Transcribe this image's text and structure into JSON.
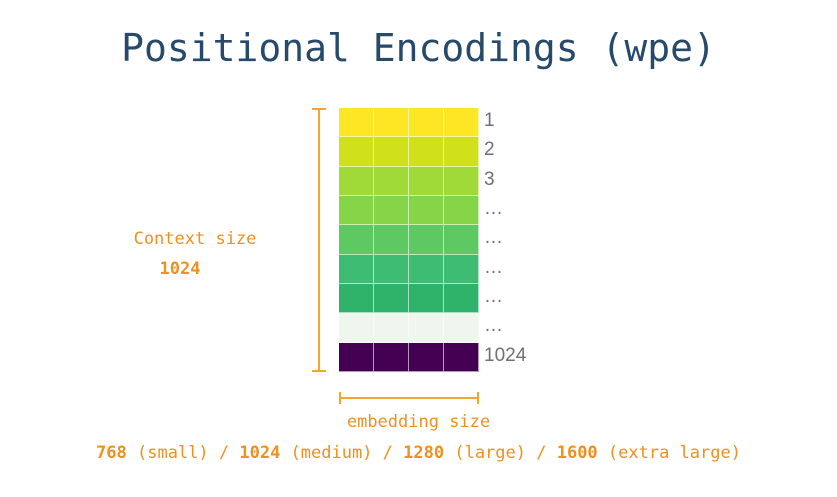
{
  "title": "Positional Encodings (wpe)",
  "matrix": {
    "columns": 4,
    "rows": [
      {
        "label": "1",
        "color": "#fde725"
      },
      {
        "label": "2",
        "color": "#d0e11c"
      },
      {
        "label": "3",
        "color": "#a0da39"
      },
      {
        "label": "…",
        "color": "#86d549"
      },
      {
        "label": "…",
        "color": "#5ec962"
      },
      {
        "label": "…",
        "color": "#3fbc73"
      },
      {
        "label": "…",
        "color": "#2fb26a"
      },
      {
        "label": "…",
        "color": "#eef6ee"
      },
      {
        "label": "1024",
        "color": "#440154"
      }
    ]
  },
  "context": {
    "label": "Context size",
    "value": "1024"
  },
  "embedding": {
    "label": "embedding size",
    "sizes": [
      {
        "value": "768",
        "name": "(small)"
      },
      {
        "value": "1024",
        "name": "(medium)"
      },
      {
        "value": "1280",
        "name": "(large)"
      },
      {
        "value": "1600",
        "name": "(extra large)"
      }
    ],
    "separator": "/"
  },
  "colors": {
    "title": "#274a6b",
    "accent": "#ef9020",
    "bracket": "#f0a72b",
    "row_label": "#707070"
  }
}
